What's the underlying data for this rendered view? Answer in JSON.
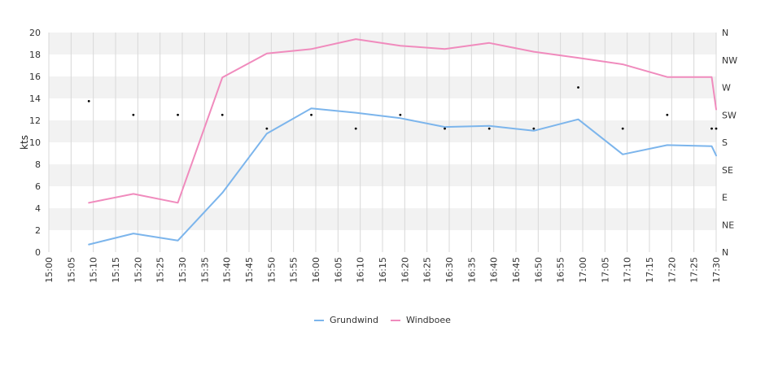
{
  "chart_data": {
    "type": "line",
    "title": "",
    "xlabel": "",
    "ylabel": "kts",
    "ylim": [
      0,
      20
    ],
    "y_ticks": [
      "0",
      "2",
      "4",
      "6",
      "8",
      "10",
      "12",
      "14",
      "16",
      "18",
      "20"
    ],
    "x_ticks": [
      "15:00",
      "15:05",
      "15:10",
      "15:15",
      "15:20",
      "15:25",
      "15:30",
      "15:35",
      "15:40",
      "15:45",
      "15:50",
      "15:55",
      "16:00",
      "16:05",
      "16:10",
      "16:15",
      "16:20",
      "16:25",
      "16:30",
      "16:35",
      "16:40",
      "16:45",
      "16:50",
      "16:55",
      "17:00",
      "17:05",
      "17:10",
      "17:15",
      "17:20",
      "17:25",
      "17:30"
    ],
    "direction_ticks": [
      "N",
      "NE",
      "E",
      "SE",
      "S",
      "SW",
      "W",
      "NW",
      "N"
    ],
    "grid": true,
    "legend_position": "bottom-center",
    "series": [
      {
        "name": "Grundwind",
        "color": "#7cb5ec",
        "points": [
          [
            "15:09",
            0.7
          ],
          [
            "15:19",
            1.7
          ],
          [
            "15:29",
            1.05
          ],
          [
            "15:39",
            5.4
          ],
          [
            "15:49",
            10.8
          ],
          [
            "15:59",
            13.1
          ],
          [
            "16:09",
            12.7
          ],
          [
            "16:19",
            12.2
          ],
          [
            "16:29",
            11.4
          ],
          [
            "16:39",
            11.5
          ],
          [
            "16:49",
            11.05
          ],
          [
            "16:59",
            12.1
          ],
          [
            "17:09",
            8.9
          ],
          [
            "17:19",
            9.75
          ],
          [
            "17:29",
            9.65
          ],
          [
            "17:30",
            8.8
          ]
        ]
      },
      {
        "name": "Windboee",
        "color": "#f08bbd",
        "points": [
          [
            "15:09",
            4.5
          ],
          [
            "15:19",
            5.3
          ],
          [
            "15:29",
            4.5
          ],
          [
            "15:39",
            15.9
          ],
          [
            "15:49",
            18.1
          ],
          [
            "15:59",
            18.5
          ],
          [
            "16:09",
            19.4
          ],
          [
            "16:19",
            18.8
          ],
          [
            "16:29",
            18.5
          ],
          [
            "16:39",
            19.05
          ],
          [
            "16:49",
            18.25
          ],
          [
            "16:59",
            17.7
          ],
          [
            "17:09",
            17.1
          ],
          [
            "17:19",
            15.95
          ],
          [
            "17:29",
            15.95
          ],
          [
            "17:30",
            13.0
          ]
        ]
      }
    ],
    "direction_points": [
      [
        "15:09",
        13.75
      ],
      [
        "15:19",
        12.5
      ],
      [
        "15:29",
        12.5
      ],
      [
        "15:39",
        12.5
      ],
      [
        "15:49",
        11.25
      ],
      [
        "15:59",
        12.5
      ],
      [
        "16:09",
        11.25
      ],
      [
        "16:19",
        12.5
      ],
      [
        "16:29",
        11.25
      ],
      [
        "16:39",
        11.25
      ],
      [
        "16:49",
        11.25
      ],
      [
        "16:59",
        15.0
      ],
      [
        "17:09",
        11.25
      ],
      [
        "17:19",
        12.5
      ],
      [
        "17:29",
        11.25
      ],
      [
        "17:30",
        11.25
      ]
    ]
  }
}
